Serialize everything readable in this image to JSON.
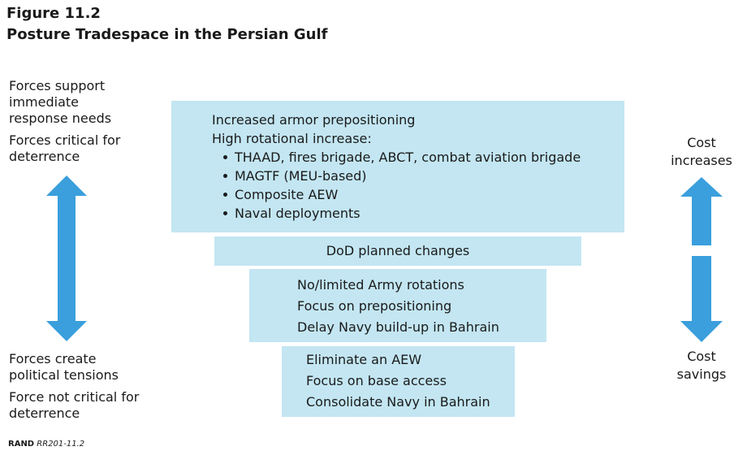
{
  "figure": {
    "label": "Figure 11.2",
    "title": "Posture Tradespace in the Persian Gulf"
  },
  "left_top": {
    "line1": "Forces support immediate response needs",
    "line2": "Forces critical for deterrence"
  },
  "left_bottom": {
    "line1": "Forces create political tensions",
    "line2": "Force not critical for deterrence"
  },
  "right_top": "Cost increases",
  "right_bottom": "Cost savings",
  "tiers": {
    "top": {
      "line1": "Increased armor prepositioning",
      "line2": "High rotational increase:",
      "bullets": [
        "THAAD, fires brigade, ABCT, combat aviation brigade",
        "MAGTF (MEU-based)",
        "Composite AEW",
        "Naval deployments"
      ]
    },
    "dod": "DoD planned changes",
    "third": [
      "No/limited Army rotations",
      "Focus on prepositioning",
      "Delay Navy build-up in Bahrain"
    ],
    "bottom": [
      "Eliminate an AEW",
      "Focus on base access",
      "Consolidate Navy in Bahrain"
    ]
  },
  "source": {
    "org": "RAND",
    "code": "RR201-11.2"
  },
  "colors": {
    "box_fill": "#c3e6f2",
    "arrow": "#3a9fdc"
  }
}
